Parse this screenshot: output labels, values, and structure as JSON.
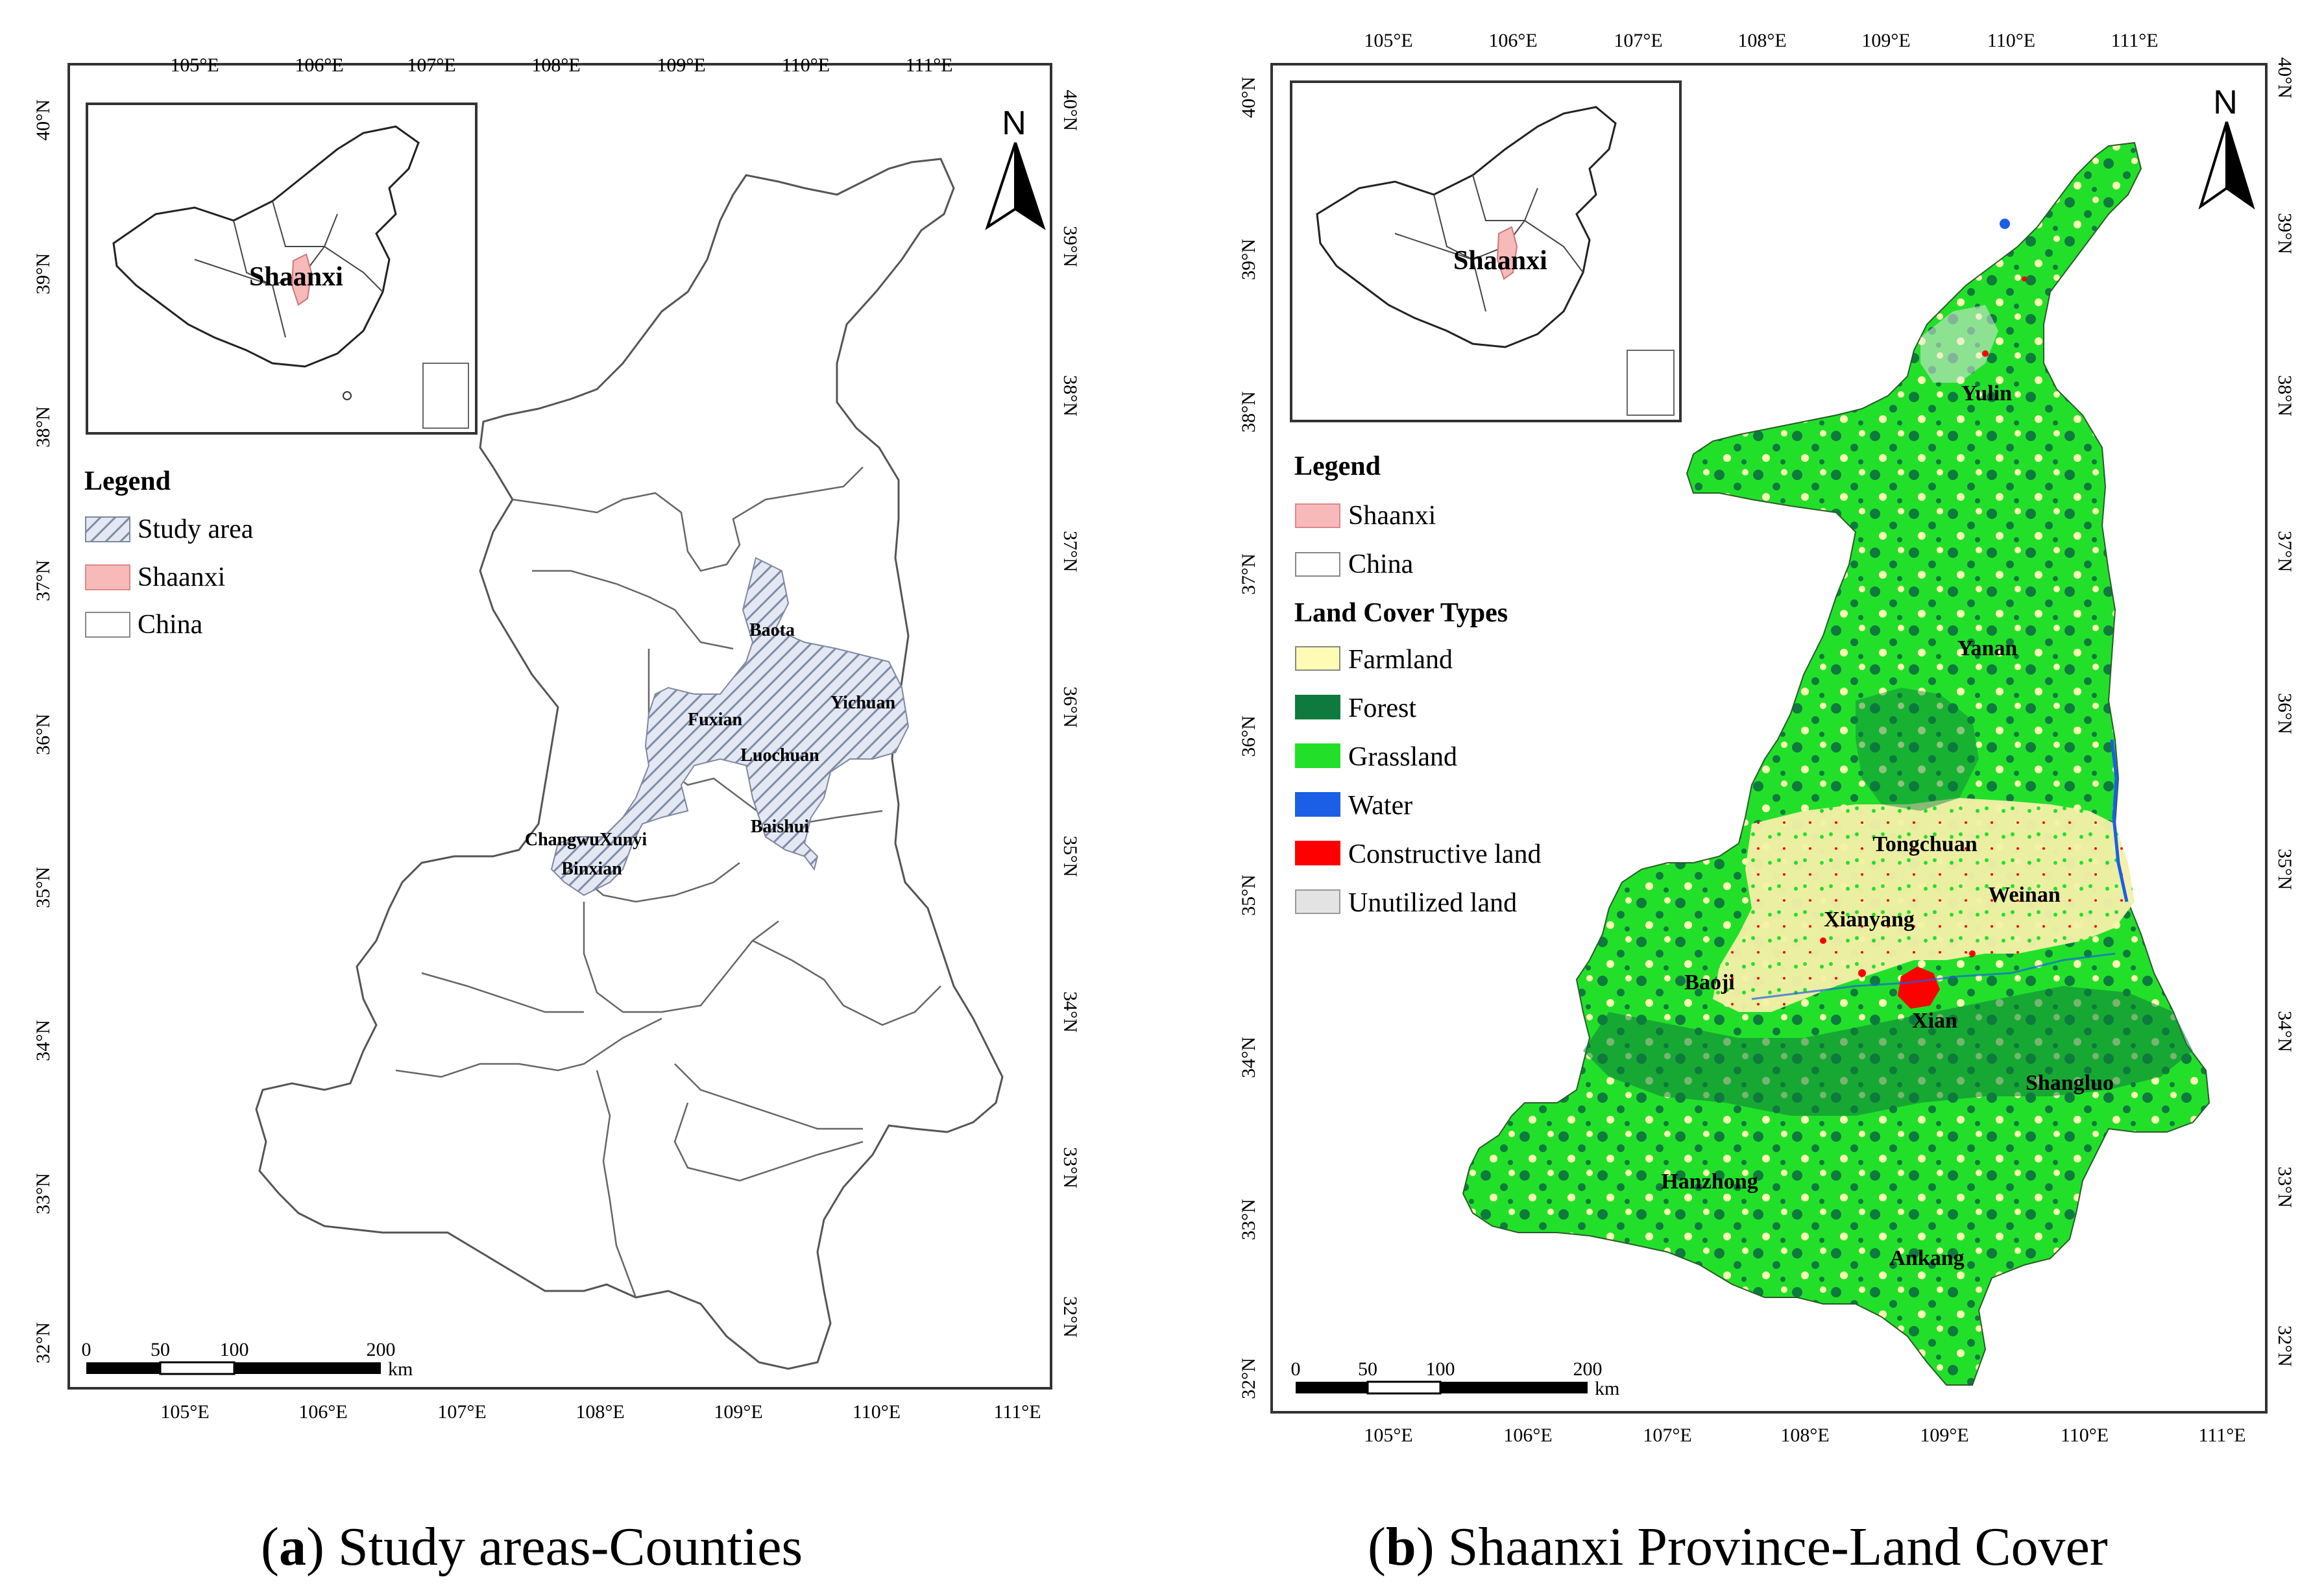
{
  "panels": [
    {
      "id": "a",
      "lon_top": [
        "105°E",
        "106°E",
        "107°E",
        "108°E",
        "109°E",
        "110°E",
        "111°E"
      ],
      "lon_bottom": [
        "105°E",
        "106°E",
        "107°E",
        "108°E",
        "109°E",
        "110°E",
        "111°E"
      ],
      "lat_left": [
        "40°N",
        "39°N",
        "38°N",
        "37°N",
        "36°N",
        "35°N",
        "34°N",
        "33°N",
        "32°N"
      ],
      "lat_right": [
        "40°N",
        "39°N",
        "38°N",
        "37°N",
        "36°N",
        "35°N",
        "34°N",
        "33°N",
        "32°N"
      ],
      "north": "N",
      "inset_label": "Shaanxi",
      "legend_title": "Legend",
      "legend_items": [
        {
          "label": "Study area",
          "swatch": "hatch"
        },
        {
          "label": "Shaanxi",
          "swatch": "#f8b9b9"
        },
        {
          "label": "China",
          "swatch": "#ffffff"
        }
      ],
      "county_labels": [
        "Baota",
        "Yichuan",
        "Fuxian",
        "Luochuan",
        "Baishui",
        "ChangwuXunyi",
        "Binxian"
      ],
      "scale_ticks": [
        "0",
        "50",
        "100",
        "200"
      ],
      "scale_unit": "km",
      "caption_letter": "a",
      "caption_text": "Study areas-Counties"
    },
    {
      "id": "b",
      "lon_top": [
        "105°E",
        "106°E",
        "107°E",
        "108°E",
        "109°E",
        "110°E",
        "111°E"
      ],
      "lon_bottom": [
        "105°E",
        "106°E",
        "107°E",
        "108°E",
        "109°E",
        "110°E",
        "111°E"
      ],
      "lat_left": [
        "40°N",
        "39°N",
        "38°N",
        "37°N",
        "36°N",
        "35°N",
        "34°N",
        "33°N",
        "32°N"
      ],
      "lat_right": [
        "40°N",
        "39°N",
        "38°N",
        "37°N",
        "36°N",
        "35°N",
        "34°N",
        "33°N",
        "32°N"
      ],
      "north": "N",
      "inset_label": "Shaanxi",
      "legend_title": "Legend",
      "legend_items": [
        {
          "label": "Shaanxi",
          "swatch": "#f8b9b9"
        },
        {
          "label": "China",
          "swatch": "#ffffff"
        }
      ],
      "landcover_title": "Land Cover Types",
      "landcover_items": [
        {
          "label": "Farmland",
          "color": "#fdfbb4"
        },
        {
          "label": "Forest",
          "color": "#0e7a3d"
        },
        {
          "label": "Grassland",
          "color": "#22e02a"
        },
        {
          "label": "Water",
          "color": "#1a5fe6"
        },
        {
          "label": "Constructive land",
          "color": "#ff0000"
        },
        {
          "label": "Unutilized land",
          "color": "#e3e3e3"
        }
      ],
      "city_labels": [
        "Yulin",
        "Yanan",
        "Tongchuan",
        "Weinan",
        "Xianyang",
        "Baoji",
        "Xian",
        "Shangluo",
        "Hanzhong",
        "Ankang"
      ],
      "scale_ticks": [
        "0",
        "50",
        "100",
        "200"
      ],
      "scale_unit": "km",
      "caption_letter": "b",
      "caption_text": "Shaanxi Province-Land Cover"
    }
  ]
}
